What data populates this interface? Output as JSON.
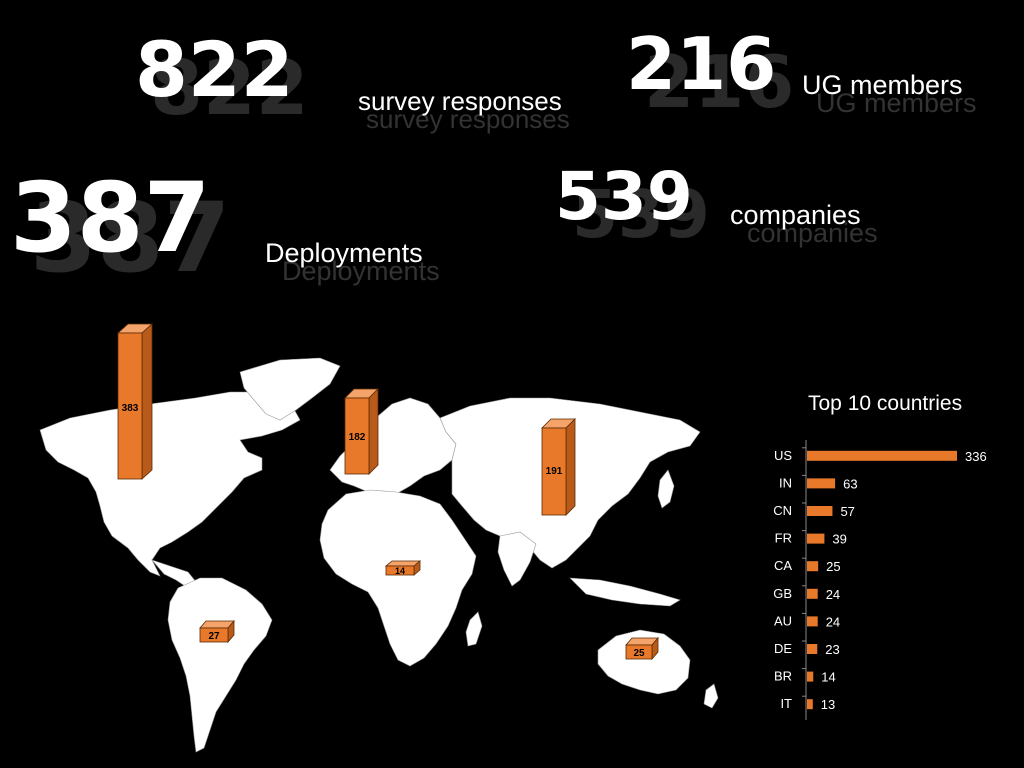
{
  "stats": [
    {
      "id": "responses",
      "value": "822",
      "label": "survey responses"
    },
    {
      "id": "members",
      "value": "216",
      "label": "UG members"
    },
    {
      "id": "deployments",
      "value": "387",
      "label": "Deployments"
    },
    {
      "id": "companies",
      "value": "539",
      "label": "companies"
    }
  ],
  "map_labels": [
    "383",
    "182",
    "191",
    "14",
    "27",
    "25"
  ],
  "chart_data": {
    "type": "bar",
    "orientation": "horizontal",
    "title": "Top 10 countries",
    "categories": [
      "US",
      "IN",
      "CN",
      "FR",
      "CA",
      "GB",
      "AU",
      "DE",
      "BR",
      "IT"
    ],
    "values": [
      336,
      63,
      57,
      39,
      25,
      24,
      24,
      23,
      14,
      13
    ],
    "xlabel": "",
    "ylabel": "",
    "xlim": [
      0,
      336
    ],
    "grid": false,
    "color": "#E8792B"
  }
}
